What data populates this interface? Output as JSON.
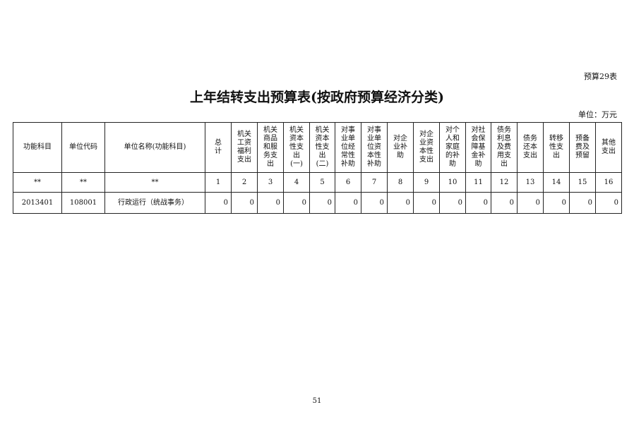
{
  "table_tag": "预算29表",
  "title": "上年结转支出预算表(按政府预算经济分类)",
  "unit": "单位：万元",
  "headers": [
    "功能科目",
    "单位代码",
    "单位名称(功能科目)",
    "总\n计",
    "机关\n工资\n福利\n支出",
    "机关\n商品\n和服\n务支\n出",
    "机关\n资本\n性支\n出\n(一)",
    "机关\n资本\n性支\n出\n(二)",
    "对事\n业单\n位经\n常性\n补助",
    "对事\n业单\n位资\n本性\n补助",
    "对企\n业补\n助",
    "对企\n业资\n本性\n支出",
    "对个\n人和\n家庭\n的补\n助",
    "对社\n会保\n障基\n金补\n助",
    "债务\n利息\n及费\n用支\n出",
    "债务\n还本\n支出",
    "转移\n性支\n出",
    "预备\n费及\n预留",
    "其他\n支出"
  ],
  "index_row": [
    "**",
    "**",
    "**",
    "1",
    "2",
    "3",
    "4",
    "5",
    "6",
    "7",
    "8",
    "9",
    "10",
    "11",
    "12",
    "13",
    "14",
    "15",
    "16"
  ],
  "rows": [
    [
      "2013401",
      "108001",
      "行政运行（统战事务）",
      "0",
      "0",
      "0",
      "0",
      "0",
      "0",
      "0",
      "0",
      "0",
      "0",
      "0",
      "0",
      "0",
      "0",
      "0",
      "0"
    ]
  ],
  "page_number": "51"
}
